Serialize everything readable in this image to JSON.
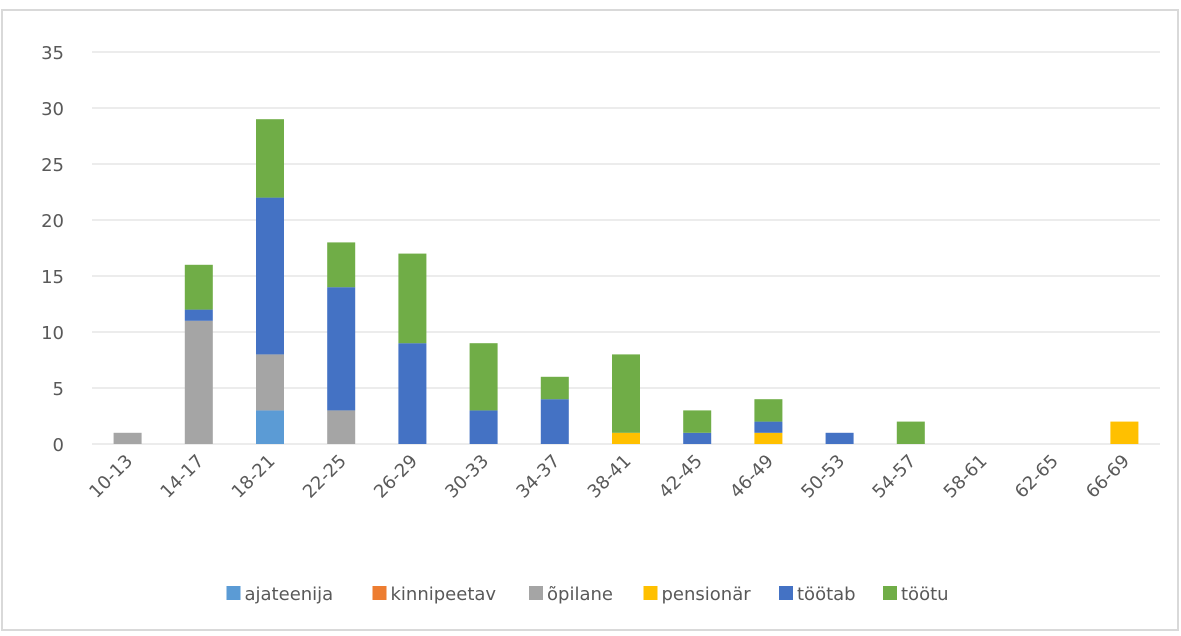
{
  "chart_data": {
    "type": "stacked_bar",
    "categories": [
      "10-13",
      "14-17",
      "18-21",
      "22-25",
      "26-29",
      "30-33",
      "34-37",
      "38-41",
      "42-45",
      "46-49",
      "50-53",
      "54-57",
      "58-61",
      "62-65",
      "66-69"
    ],
    "series": [
      {
        "name": "ajateenija",
        "color": "#5b9bd5",
        "values": [
          0,
          0,
          3,
          0,
          0,
          0,
          0,
          0,
          0,
          0,
          0,
          0,
          0,
          0,
          0
        ]
      },
      {
        "name": "kinnipeetav",
        "color": "#ed7d31",
        "values": [
          0,
          0,
          0,
          0,
          0,
          0,
          0,
          0,
          0,
          0,
          0,
          0,
          0,
          0,
          0
        ]
      },
      {
        "name": "õpilane",
        "color": "#a5a5a5",
        "values": [
          1,
          11,
          5,
          3,
          0,
          0,
          0,
          0,
          0,
          0,
          0,
          0,
          0,
          0,
          0
        ]
      },
      {
        "name": "pensionär",
        "color": "#ffc000",
        "values": [
          0,
          0,
          0,
          0,
          0,
          0,
          0,
          1,
          0,
          1,
          0,
          0,
          0,
          0,
          2
        ]
      },
      {
        "name": "töötab",
        "color": "#4472c4",
        "values": [
          0,
          1,
          14,
          11,
          9,
          3,
          4,
          0,
          1,
          1,
          1,
          0,
          0,
          0,
          0
        ]
      },
      {
        "name": "töötu",
        "color": "#70ad47",
        "values": [
          0,
          4,
          7,
          4,
          8,
          6,
          2,
          7,
          2,
          2,
          0,
          2,
          0,
          0,
          0
        ]
      }
    ],
    "ylim": [
      0,
      35
    ],
    "yticks": [
      0,
      5,
      10,
      15,
      20,
      25,
      30,
      35
    ],
    "grid": true,
    "legend": "bottom"
  }
}
